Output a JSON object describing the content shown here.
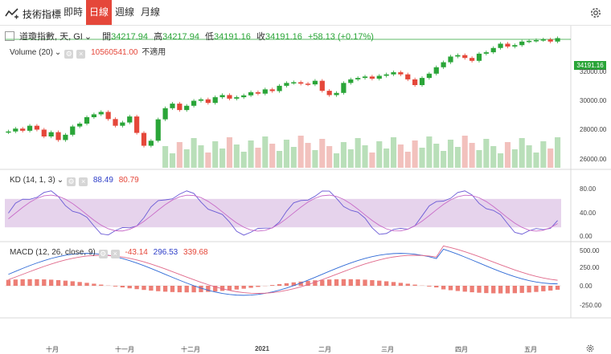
{
  "toolbar": {
    "title": "技術指標",
    "tabs": [
      {
        "label": "即時"
      },
      {
        "label": "日線",
        "active": true
      },
      {
        "label": "週線"
      },
      {
        "label": "月線"
      }
    ]
  },
  "main": {
    "symbol": "道瓊指數, 天, GI",
    "ohlc": {
      "open_label": "開",
      "open": "34217.94",
      "high_label": "高",
      "high": "34217.94",
      "low_label": "低",
      "low": "34191.16",
      "close_label": "收",
      "close": "34191.16",
      "change": "+58.13 (+0.17%)"
    },
    "volume_label": "Volume (20)",
    "volume_value": "10560541.00",
    "volume_note": "不適用",
    "last_price": "34191.16",
    "y_ticks": [
      "32000.00",
      "30000.00",
      "28000.00",
      "26000.00"
    ]
  },
  "kd": {
    "label": "KD (14, 1, 3)",
    "k": "88.49",
    "d": "80.79",
    "y_ticks": [
      "80.00",
      "40.00",
      "0.00"
    ]
  },
  "macd": {
    "label": "MACD (12, 26, close, 9)",
    "hist": "-43.14",
    "macd": "296.53",
    "signal": "339.68",
    "y_ticks": [
      "500.00",
      "250.00",
      "0.00",
      "-250.00"
    ]
  },
  "x_axis": [
    "十月",
    "十一月",
    "十二月",
    "2021",
    "二月",
    "三月",
    "四月",
    "五月"
  ],
  "colors": {
    "up": "#2aa538",
    "down": "#e5473a",
    "kd_k": "#6b5bd6",
    "kd_d": "#c86bc8",
    "band": "#dcc0e4",
    "macd_line": "#2f6ad6",
    "signal_line": "#e0688a"
  },
  "chart_data": [
    {
      "type": "line",
      "series": [
        {
          "values": [
            27650,
            27850,
            27700,
            28050,
            27780,
            27300,
            27600,
            27050,
            27420,
            28000,
            28200,
            28650,
            28850,
            29020,
            28520,
            28050,
            28280,
            28700,
            27550,
            26650,
            27000,
            28500,
            29280,
            29600,
            29150,
            29450,
            29800,
            29900,
            29650,
            30050,
            30200,
            29950,
            30050,
            30180,
            30400,
            30300,
            30600,
            30480,
            30850,
            31050,
            31100,
            31000,
            30950,
            31200,
            30500,
            30200,
            30350,
            31050,
            31300,
            31400,
            31500,
            31350,
            31550,
            31650,
            31800,
            31650,
            31300,
            30900,
            31400,
            31700,
            32150,
            32500,
            32900,
            33000,
            32800,
            32600,
            33100,
            33200,
            33500,
            33800,
            33600,
            33700,
            33950,
            34000,
            34050,
            34100,
            33950,
            34191
          ]
        }
      ],
      "x_range": [
        "十月",
        "五月"
      ],
      "ylim": [
        25500,
        34500
      ]
    },
    {
      "type": "bar",
      "title": "Volume (20)"
    },
    {
      "type": "line",
      "title": "KD (14, 1, 3)",
      "ylim": [
        0,
        100
      ]
    },
    {
      "type": "bar",
      "title": "MACD (12, 26, close, 9)",
      "ylim": [
        -300,
        500
      ]
    }
  ]
}
